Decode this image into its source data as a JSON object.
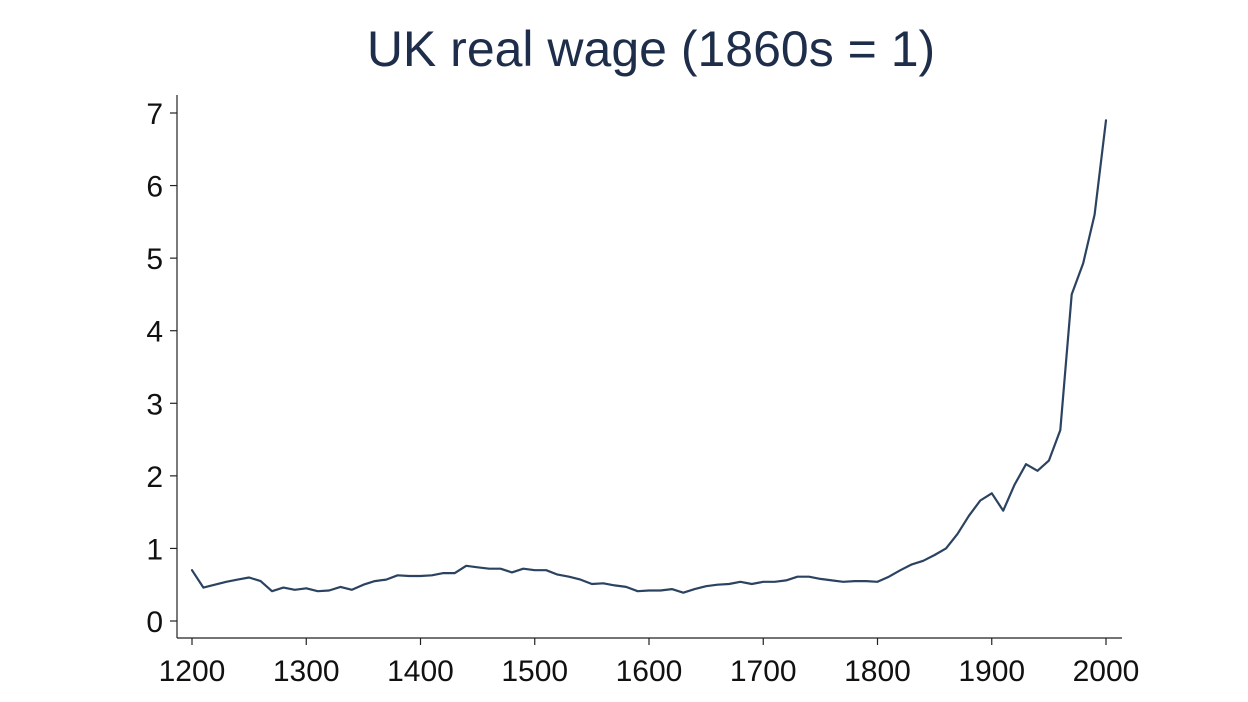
{
  "chart_data": {
    "type": "line",
    "title": "UK real wage (1860s = 1)",
    "xlabel": "",
    "ylabel": "",
    "xlim": [
      1200,
      2000
    ],
    "ylim": [
      0,
      7
    ],
    "xticks": [
      1200,
      1300,
      1400,
      1500,
      1600,
      1700,
      1800,
      1900,
      2000
    ],
    "yticks": [
      0,
      1,
      2,
      3,
      4,
      5,
      6,
      7
    ],
    "grid": false,
    "legend": "none",
    "line_color": "#2b4361",
    "series": [
      {
        "x": [
          1200,
          1210,
          1220,
          1230,
          1240,
          1250,
          1260,
          1270,
          1280,
          1290,
          1300,
          1310,
          1320,
          1330,
          1340,
          1350,
          1360,
          1370,
          1380,
          1390,
          1400,
          1410,
          1420,
          1430,
          1440,
          1450,
          1460,
          1470,
          1480,
          1490,
          1500,
          1510,
          1520,
          1530,
          1540,
          1550,
          1560,
          1570,
          1580,
          1590,
          1600,
          1610,
          1620,
          1630,
          1640,
          1650,
          1660,
          1670,
          1680,
          1690,
          1700,
          1710,
          1720,
          1730,
          1740,
          1750,
          1760,
          1770,
          1780,
          1790,
          1800,
          1810,
          1820,
          1830,
          1840,
          1850,
          1860,
          1870,
          1880,
          1890,
          1900,
          1910,
          1920,
          1930,
          1940,
          1950,
          1960,
          1970,
          1980,
          1990,
          2000
        ],
        "y": [
          0.7,
          0.46,
          0.5,
          0.54,
          0.57,
          0.6,
          0.55,
          0.41,
          0.46,
          0.43,
          0.45,
          0.41,
          0.42,
          0.47,
          0.43,
          0.5,
          0.55,
          0.57,
          0.63,
          0.62,
          0.62,
          0.63,
          0.66,
          0.66,
          0.76,
          0.74,
          0.72,
          0.72,
          0.67,
          0.72,
          0.7,
          0.7,
          0.64,
          0.61,
          0.57,
          0.51,
          0.52,
          0.49,
          0.47,
          0.41,
          0.42,
          0.42,
          0.44,
          0.39,
          0.44,
          0.48,
          0.5,
          0.51,
          0.54,
          0.51,
          0.54,
          0.54,
          0.56,
          0.61,
          0.61,
          0.58,
          0.56,
          0.54,
          0.55,
          0.55,
          0.54,
          0.61,
          0.7,
          0.78,
          0.83,
          0.91,
          1.0,
          1.2,
          1.45,
          1.66,
          1.76,
          1.52,
          1.88,
          2.16,
          2.07,
          2.21,
          2.63,
          4.5,
          4.93,
          5.6,
          6.9
        ]
      }
    ]
  }
}
